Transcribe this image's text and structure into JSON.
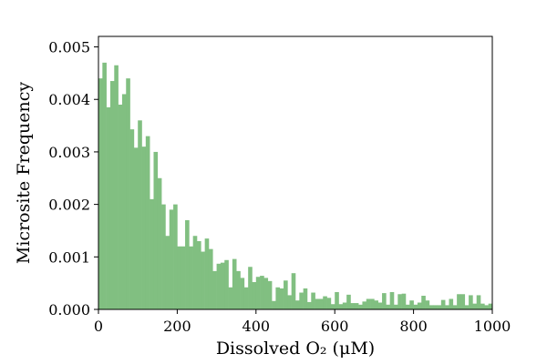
{
  "chart_data": {
    "type": "bar",
    "xlabel": "Dissolved O₂ (μM)",
    "ylabel": "Microsite Frequency",
    "xlim": [
      0,
      1000
    ],
    "ylim": [
      0,
      0.0052
    ],
    "bin_width": 10,
    "x_ticks": [
      0,
      200,
      400,
      600,
      800,
      1000
    ],
    "x_tick_labels": [
      "0",
      "200",
      "400",
      "600",
      "800",
      "1000"
    ],
    "y_ticks": [
      0,
      0.001,
      0.002,
      0.003,
      0.004,
      0.005
    ],
    "y_tick_labels": [
      "0.000",
      "0.001",
      "0.002",
      "0.003",
      "0.004",
      "0.005"
    ],
    "grid": false,
    "bar_color": "#81bf81",
    "bin_starts": [
      0,
      10,
      20,
      30,
      40,
      50,
      60,
      70,
      80,
      90,
      100,
      110,
      120,
      130,
      140,
      150,
      160,
      170,
      180,
      190,
      200,
      210,
      220,
      230,
      240,
      250,
      260,
      270,
      280,
      290,
      300,
      310,
      320,
      330,
      340,
      350,
      360,
      370,
      380,
      390,
      400,
      410,
      420,
      430,
      440,
      450,
      460,
      470,
      480,
      490,
      500,
      510,
      520,
      530,
      540,
      550,
      560,
      570,
      580,
      590,
      600,
      610,
      620,
      630,
      640,
      650,
      660,
      670,
      680,
      690,
      700,
      710,
      720,
      730,
      740,
      750,
      760,
      770,
      780,
      790,
      800,
      810,
      820,
      830,
      840,
      850,
      860,
      870,
      880,
      890,
      900,
      910,
      920,
      930,
      940,
      950,
      960,
      970,
      980,
      990
    ],
    "values": [
      0.0044,
      0.0047,
      0.00385,
      0.00435,
      0.00465,
      0.0039,
      0.0041,
      0.0044,
      0.00343,
      0.00308,
      0.0036,
      0.0031,
      0.0033,
      0.0021,
      0.003,
      0.0025,
      0.002,
      0.0014,
      0.0019,
      0.002,
      0.0012,
      0.0012,
      0.0017,
      0.0012,
      0.0014,
      0.0013,
      0.0011,
      0.00135,
      0.00115,
      0.00073,
      0.00087,
      0.00089,
      0.00094,
      0.00042,
      0.00096,
      0.00073,
      0.0006,
      0.00042,
      0.00081,
      0.00052,
      0.00062,
      0.00064,
      0.0006,
      0.00054,
      0.00016,
      0.00042,
      0.0004,
      0.00055,
      0.00027,
      0.00069,
      0.00017,
      0.00032,
      0.0004,
      0.00014,
      0.00032,
      0.0002,
      0.0002,
      0.00025,
      0.00022,
      0.0001,
      0.00033,
      0.0001,
      0.00013,
      0.00028,
      0.00012,
      0.00012,
      9e-05,
      0.00015,
      0.0002,
      0.0002,
      0.00017,
      0.00013,
      0.00031,
      9e-05,
      0.00033,
      9e-05,
      0.00029,
      0.0003,
      9e-05,
      0.00017,
      9e-05,
      0.00013,
      0.00026,
      0.00017,
      8e-05,
      8e-05,
      8e-05,
      0.00018,
      8e-05,
      0.0002,
      8e-05,
      0.00029,
      0.00029,
      8e-05,
      0.00027,
      0.00011,
      0.00027,
      0.00011,
      8e-05,
      0.00011
    ]
  }
}
